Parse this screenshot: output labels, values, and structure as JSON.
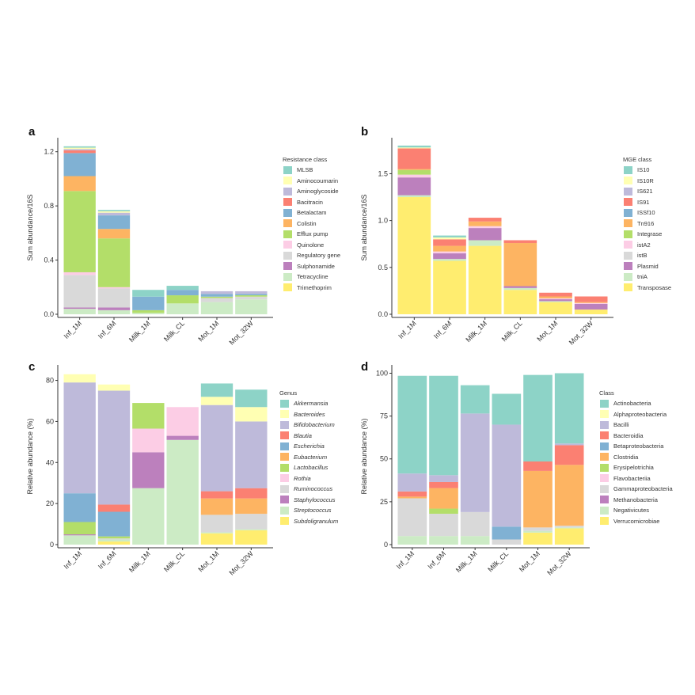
{
  "figure": {
    "panels": [
      "a",
      "b",
      "c",
      "d"
    ]
  },
  "chart_data": [
    {
      "id": "a",
      "type": "bar",
      "stacked": true,
      "title": "",
      "panel_label": "a",
      "xlabel": "",
      "ylabel": "Sum abundance/16S",
      "ylim": [
        0,
        1.28
      ],
      "yticks": [
        0.0,
        0.4,
        0.8,
        1.2
      ],
      "ytick_labels": [
        "0.0",
        "0.4",
        "0.8",
        "1.2"
      ],
      "categories": [
        "Inf_1M",
        "Inf_6M",
        "Milk_1M",
        "Milk_CL",
        "Mot_1M",
        "Mot_32W"
      ],
      "legend_title": "Resistance class",
      "legend_position": "right",
      "legend_italic": false,
      "series": [
        {
          "name": "MLSB",
          "color": "#8dd3c7",
          "values": [
            0.01,
            0.01,
            0.05,
            0.03,
            0.0,
            0.0
          ]
        },
        {
          "name": "Aminocoumarin",
          "color": "#ffffb3",
          "values": [
            0.01,
            0.01,
            0.0,
            0.0,
            0.0,
            0.0
          ]
        },
        {
          "name": "Aminoglycoside",
          "color": "#bebada",
          "values": [
            0.01,
            0.02,
            0.0,
            0.0,
            0.02,
            0.02
          ]
        },
        {
          "name": "Bacitracin",
          "color": "#fb8072",
          "values": [
            0.02,
            0.0,
            0.0,
            0.0,
            0.0,
            0.0
          ]
        },
        {
          "name": "Betalactam",
          "color": "#80b1d3",
          "values": [
            0.17,
            0.1,
            0.1,
            0.04,
            0.02,
            0.01
          ]
        },
        {
          "name": "Colistin",
          "color": "#fdb462",
          "values": [
            0.11,
            0.07,
            0.0,
            0.0,
            0.0,
            0.0
          ]
        },
        {
          "name": "Efflux pump",
          "color": "#b3de69",
          "values": [
            0.6,
            0.36,
            0.02,
            0.06,
            0.01,
            0.01
          ]
        },
        {
          "name": "Quinolone",
          "color": "#fccde5",
          "values": [
            0.02,
            0.01,
            0.0,
            0.0,
            0.0,
            0.0
          ]
        },
        {
          "name": "Regulatory gene",
          "color": "#d9d9d9",
          "values": [
            0.24,
            0.14,
            0.0,
            0.0,
            0.03,
            0.02
          ]
        },
        {
          "name": "Sulphonamide",
          "color": "#bc80bd",
          "values": [
            0.01,
            0.02,
            0.0,
            0.0,
            0.0,
            0.0
          ]
        },
        {
          "name": "Tetracycline",
          "color": "#ccebc5",
          "values": [
            0.04,
            0.03,
            0.01,
            0.08,
            0.09,
            0.11
          ]
        },
        {
          "name": "Trimethoprim",
          "color": "#ffed6f",
          "values": [
            0.0,
            0.0,
            0.0,
            0.0,
            0.0,
            0.0
          ]
        }
      ]
    },
    {
      "id": "b",
      "type": "bar",
      "stacked": true,
      "title": "",
      "panel_label": "b",
      "xlabel": "",
      "ylabel": "Sum abundance/16S",
      "ylim": [
        0,
        1.85
      ],
      "yticks": [
        0.0,
        0.5,
        1.0,
        1.5
      ],
      "ytick_labels": [
        "0.0",
        "0.5",
        "1.0",
        "1.5"
      ],
      "categories": [
        "Inf_1M",
        "Inf_6M",
        "Milk_1M",
        "Milk_CL",
        "Mot_1M",
        "Mot_32W"
      ],
      "legend_title": "MGE class",
      "legend_position": "right",
      "legend_italic": false,
      "series": [
        {
          "name": "IS10",
          "color": "#8dd3c7",
          "values": [
            0.02,
            0.02,
            0.0,
            0.0,
            0.0,
            0.0
          ]
        },
        {
          "name": "IS10R",
          "color": "#ffffb3",
          "values": [
            0.01,
            0.02,
            0.0,
            0.0,
            0.0,
            0.0
          ]
        },
        {
          "name": "IS621",
          "color": "#bebada",
          "values": [
            0.0,
            0.0,
            0.0,
            0.0,
            0.0,
            0.0
          ]
        },
        {
          "name": "IS91",
          "color": "#fb8072",
          "values": [
            0.22,
            0.07,
            0.04,
            0.03,
            0.04,
            0.06
          ]
        },
        {
          "name": "ISSf10",
          "color": "#80b1d3",
          "values": [
            0.0,
            0.0,
            0.0,
            0.0,
            0.0,
            0.0
          ]
        },
        {
          "name": "Tn916",
          "color": "#fdb462",
          "values": [
            0.01,
            0.06,
            0.05,
            0.46,
            0.02,
            0.01
          ]
        },
        {
          "name": "Integrase",
          "color": "#b3de69",
          "values": [
            0.05,
            0.0,
            0.0,
            0.0,
            0.0,
            0.0
          ]
        },
        {
          "name": "istA2",
          "color": "#fccde5",
          "values": [
            0.03,
            0.02,
            0.02,
            0.0,
            0.01,
            0.01
          ]
        },
        {
          "name": "istB",
          "color": "#d9d9d9",
          "values": [
            0.0,
            0.0,
            0.0,
            0.0,
            0.0,
            0.0
          ]
        },
        {
          "name": "Plasmid",
          "color": "#bc80bd",
          "values": [
            0.19,
            0.06,
            0.13,
            0.02,
            0.02,
            0.06
          ]
        },
        {
          "name": "tniA",
          "color": "#ccebc5",
          "values": [
            0.02,
            0.02,
            0.06,
            0.02,
            0.01,
            0.0
          ]
        },
        {
          "name": "Transposase",
          "color": "#ffed6f",
          "values": [
            1.25,
            0.57,
            0.73,
            0.26,
            0.13,
            0.05
          ]
        }
      ]
    },
    {
      "id": "c",
      "type": "bar",
      "stacked": true,
      "title": "",
      "panel_label": "c",
      "xlabel": "",
      "ylabel": "Relative abundance (%)",
      "ylim": [
        0,
        86
      ],
      "yticks": [
        0,
        20,
        40,
        60,
        80
      ],
      "ytick_labels": [
        "0",
        "20",
        "40",
        "60",
        "80"
      ],
      "categories": [
        "Inf_1M",
        "Inf_6M",
        "Milk_1M",
        "Milk_CL",
        "Mot_1M",
        "Mot_32W"
      ],
      "legend_title": "Genus",
      "legend_position": "right",
      "legend_italic": true,
      "series": [
        {
          "name": "Akkermansia",
          "color": "#8dd3c7",
          "values": [
            0.0,
            0.0,
            0.0,
            0.0,
            6.5,
            8.5
          ]
        },
        {
          "name": "Bacteroides",
          "color": "#ffffb3",
          "values": [
            4.0,
            3.0,
            0.0,
            0.0,
            4.0,
            7.0
          ]
        },
        {
          "name": "Bifidobacterium",
          "color": "#bebada",
          "values": [
            54.0,
            55.5,
            0.0,
            0.0,
            42.0,
            32.5
          ]
        },
        {
          "name": "Blautia",
          "color": "#fb8072",
          "values": [
            0.0,
            3.5,
            0.0,
            0.0,
            3.5,
            5.0
          ]
        },
        {
          "name": "Escherichia",
          "color": "#80b1d3",
          "values": [
            14.0,
            12.0,
            0.0,
            0.0,
            0.0,
            0.0
          ]
        },
        {
          "name": "Eubacterium",
          "color": "#fdb462",
          "values": [
            0.0,
            0.0,
            0.0,
            0.0,
            8.0,
            7.5
          ]
        },
        {
          "name": "Lactobacillus",
          "color": "#b3de69",
          "values": [
            6.0,
            1.0,
            12.5,
            0.0,
            0.0,
            0.0
          ]
        },
        {
          "name": "Rothia",
          "color": "#fccde5",
          "values": [
            0.0,
            0.0,
            11.5,
            14.0,
            0.0,
            0.0
          ]
        },
        {
          "name": "Ruminococcus",
          "color": "#d9d9d9",
          "values": [
            0.0,
            0.5,
            0.0,
            0.0,
            8.5,
            7.5
          ]
        },
        {
          "name": "Staphylococcus",
          "color": "#bc80bd",
          "values": [
            0.5,
            0.0,
            17.5,
            2.0,
            0.0,
            0.0
          ]
        },
        {
          "name": "Streptococcus",
          "color": "#ccebc5",
          "values": [
            4.5,
            1.0,
            27.5,
            51.0,
            0.5,
            0.5
          ]
        },
        {
          "name": "Subdoligranulum",
          "color": "#ffed6f",
          "values": [
            0.0,
            1.5,
            0.0,
            0.0,
            5.5,
            7.0
          ]
        }
      ]
    },
    {
      "id": "d",
      "type": "bar",
      "stacked": true,
      "title": "",
      "panel_label": "d",
      "xlabel": "",
      "ylabel": "Relative abundance (%)",
      "ylim": [
        0,
        103
      ],
      "yticks": [
        0,
        25,
        50,
        75,
        100
      ],
      "ytick_labels": [
        "0",
        "25",
        "50",
        "75",
        "100"
      ],
      "categories": [
        "Inf_1M",
        "Inf_6M",
        "Milk_1M",
        "Milk_CL",
        "Mot_1M",
        "Mot_32W"
      ],
      "legend_title": "Class",
      "legend_position": "right",
      "legend_italic": false,
      "series": [
        {
          "name": "Actinobacteria",
          "color": "#8dd3c7",
          "values": [
            57.0,
            58.0,
            16.5,
            18.0,
            50.5,
            41.0
          ]
        },
        {
          "name": "Alphaproteobacteria",
          "color": "#ffffb3",
          "values": [
            0.0,
            0.0,
            0.0,
            0.0,
            0.0,
            0.0
          ]
        },
        {
          "name": "Bacilli",
          "color": "#bebada",
          "values": [
            10.5,
            4.0,
            57.5,
            59.5,
            0.0,
            1.0
          ]
        },
        {
          "name": "Bacteroidia",
          "color": "#fb8072",
          "values": [
            3.0,
            3.5,
            0.0,
            0.0,
            5.5,
            11.5
          ]
        },
        {
          "name": "Betaproteobacteria",
          "color": "#80b1d3",
          "values": [
            0.0,
            0.0,
            0.0,
            7.5,
            0.0,
            0.0
          ]
        },
        {
          "name": "Clostridia",
          "color": "#fdb462",
          "values": [
            1.0,
            12.0,
            0.0,
            0.0,
            33.0,
            35.5
          ]
        },
        {
          "name": "Erysipelotrichia",
          "color": "#b3de69",
          "values": [
            0.0,
            3.0,
            0.0,
            0.0,
            0.0,
            0.0
          ]
        },
        {
          "name": "Flavobacteriia",
          "color": "#fccde5",
          "values": [
            0.0,
            0.0,
            0.0,
            0.0,
            0.0,
            0.0
          ]
        },
        {
          "name": "Gammaproteobacteria",
          "color": "#d9d9d9",
          "values": [
            22.0,
            13.0,
            14.0,
            3.0,
            2.0,
            1.0
          ]
        },
        {
          "name": "Methanobacteria",
          "color": "#bc80bd",
          "values": [
            0.0,
            0.0,
            0.0,
            0.0,
            0.0,
            0.0
          ]
        },
        {
          "name": "Negativicutes",
          "color": "#ccebc5",
          "values": [
            5.0,
            5.0,
            5.0,
            0.0,
            1.0,
            0.5
          ]
        },
        {
          "name": "Verrucomicrobiae",
          "color": "#ffed6f",
          "values": [
            0.0,
            0.0,
            0.0,
            0.0,
            7.0,
            9.5
          ]
        }
      ]
    }
  ]
}
